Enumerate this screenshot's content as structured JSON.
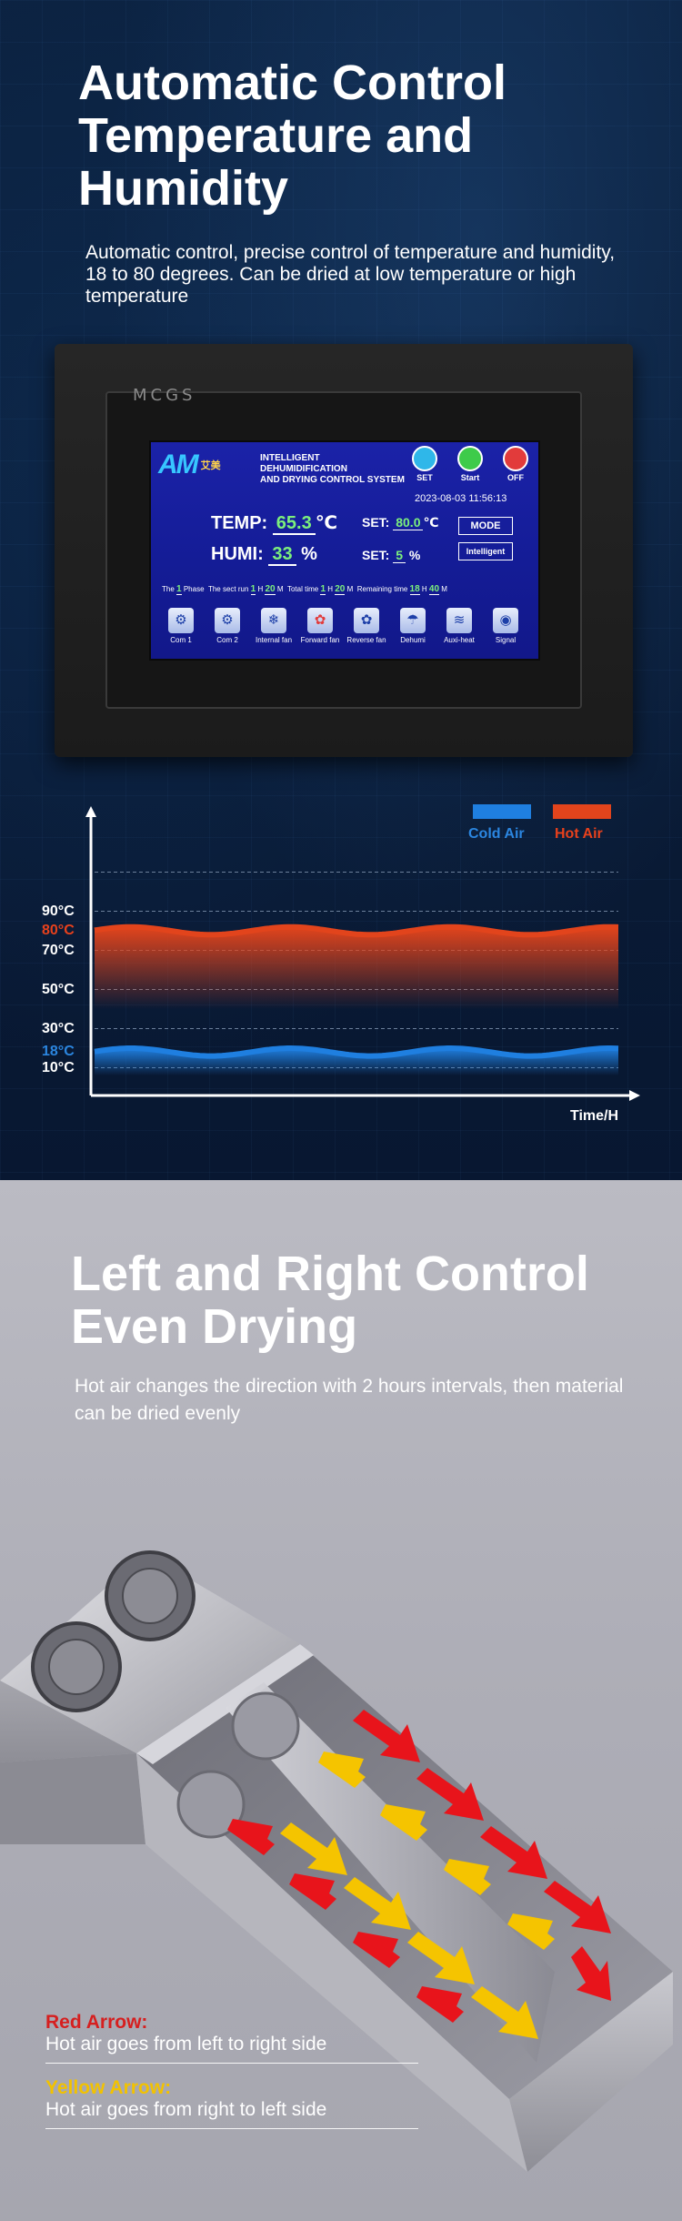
{
  "section1": {
    "title_lines": [
      "Automatic Control",
      "Temperature and",
      "Humidity"
    ],
    "subtitle": "Automatic control, precise control of temperature and humidity, 18 to 80 degrees. Can be dried at low temperature or high temperature",
    "device": {
      "brand": "MCGS",
      "screen": {
        "logo": "AM",
        "logo_sub": "艾美",
        "title_line1": "INTELLIGENT DEHUMIDIFICATION",
        "title_line2": "AND DRYING CONTROL SYSTEM",
        "buttons": [
          {
            "label": "SET",
            "color": "#2fb7e9"
          },
          {
            "label": "Start",
            "color": "#3ecb4a"
          },
          {
            "label": "OFF",
            "color": "#e23b3b"
          }
        ],
        "datetime": "2023-08-03 11:56:13",
        "temp_label": "TEMP:",
        "temp_value": "65.3",
        "temp_unit": "℃",
        "humi_label": "HUMI:",
        "humi_value": "33",
        "humi_unit": "%",
        "set_label": "SET:",
        "set_temp_value": "80.0",
        "set_temp_unit": "℃",
        "set_humi_value": "5",
        "set_humi_unit": "%",
        "mode_label": "MODE",
        "mode_value": "Intelligent",
        "phase_text_1": "The",
        "phase_num": "1",
        "phase_text_2": "Phase",
        "sect_label": "The sect run",
        "sect_h": "1",
        "sect_m": "20",
        "total_label": "Total time",
        "total_h": "1",
        "total_m": "20",
        "remain_label": "Remaining time",
        "remain_h": "18",
        "remain_m": "40",
        "h_unit": "H",
        "m_unit": "M",
        "icons": [
          {
            "label": "Com 1",
            "icon": "compressor-icon",
            "glyph": "⚙"
          },
          {
            "label": "Com 2",
            "icon": "compressor-icon",
            "glyph": "⚙"
          },
          {
            "label": "Internal fan",
            "icon": "snowflake-icon",
            "glyph": "❄"
          },
          {
            "label": "Forward fan",
            "icon": "fan-icon",
            "glyph": "✿"
          },
          {
            "label": "Reverse fan",
            "icon": "fan-icon",
            "glyph": "✿"
          },
          {
            "label": "Dehumi",
            "icon": "water-drop-icon",
            "glyph": "☂"
          },
          {
            "label": "Auxi-heat",
            "icon": "heater-icon",
            "glyph": "≋"
          },
          {
            "label": "Signal",
            "icon": "signal-icon",
            "glyph": "◉"
          }
        ]
      }
    }
  },
  "chart_data": {
    "type": "area",
    "title": "",
    "xlabel": "Time/H",
    "ylabel": "",
    "yticks": [
      "90°C",
      "80°C",
      "70°C",
      "50°C",
      "30°C",
      "18°C",
      "10°C"
    ],
    "ytick_colors": [
      "#ffffff",
      "#e8411c",
      "#ffffff",
      "#ffffff",
      "#ffffff",
      "#2b86e0",
      "#ffffff"
    ],
    "ytick_values": [
      90,
      80,
      70,
      50,
      30,
      18,
      10
    ],
    "ylim": [
      0,
      120
    ],
    "series": [
      {
        "name": "Cold Air",
        "color": "#1f7fe0",
        "center": 18,
        "amplitude": 2
      },
      {
        "name": "Hot Air",
        "color": "#e2441c",
        "center": 80,
        "amplitude": 2
      }
    ],
    "grid": true,
    "legend_position": "top-right"
  },
  "section2": {
    "title_lines": [
      "Left and Right Control",
      "Even Drying"
    ],
    "subtitle": "Hot air changes the direction with 2 hours intervals, then material can be dried evenly",
    "notes": [
      {
        "title": "Red Arrow:",
        "desc": "Hot air goes from left to right side",
        "color": "#d61f1f"
      },
      {
        "title": "Yellow Arrow:",
        "desc": "Hot air goes from right to left side",
        "color": "#f2c200"
      }
    ]
  }
}
